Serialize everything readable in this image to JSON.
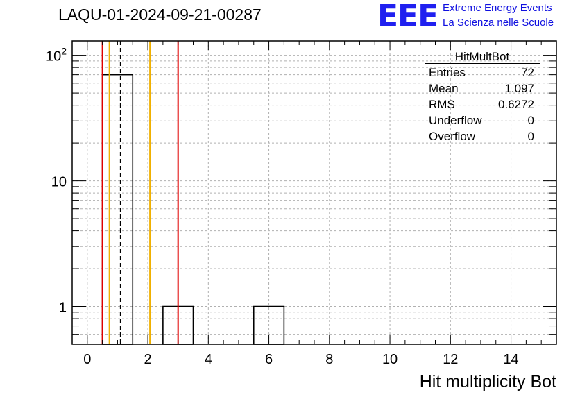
{
  "title": "LAQU-01-2024-09-21-00287",
  "logo": {
    "mark": "EEE",
    "line1": "Extreme Energy Events",
    "line2": "La Scienza nelle Scuole"
  },
  "stats": {
    "name": "HitMultBot",
    "rows": [
      {
        "label": "Entries",
        "value": "72"
      },
      {
        "label": "Mean",
        "value": "1.097"
      },
      {
        "label": "RMS",
        "value": "0.6272"
      },
      {
        "label": "Underflow",
        "value": "0"
      },
      {
        "label": "Overflow",
        "value": "0"
      }
    ]
  },
  "chart_data": {
    "type": "bar",
    "title": "LAQU-01-2024-09-21-00287",
    "xlabel": "Hit multiplicity Bot",
    "ylabel": "",
    "xlim": [
      -0.5,
      15.5
    ],
    "ylim": [
      0.5,
      130
    ],
    "log_y": true,
    "grid": true,
    "bin_edges": [
      0.5,
      1.5,
      2.5,
      3.5,
      4.5,
      5.5,
      6.5
    ],
    "bins": [
      {
        "low": 0.5,
        "high": 1.5,
        "count": 70
      },
      {
        "low": 2.5,
        "high": 3.5,
        "count": 1
      },
      {
        "low": 5.5,
        "high": 6.5,
        "count": 1
      }
    ],
    "x_ticks": [
      0,
      2,
      4,
      6,
      8,
      10,
      12,
      14
    ],
    "y_ticks": [
      {
        "value": 1,
        "label": "1"
      },
      {
        "value": 10,
        "label": "10"
      },
      {
        "value": 100,
        "label": "10^2"
      }
    ],
    "vertical_lines": [
      {
        "x": 0.5,
        "color": "#e00000",
        "style": "solid"
      },
      {
        "x": 0.73,
        "color": "#f0b000",
        "style": "solid"
      },
      {
        "x": 1.097,
        "color": "#000000",
        "style": "dashed"
      },
      {
        "x": 2.07,
        "color": "#f0b000",
        "style": "solid"
      },
      {
        "x": 3.0,
        "color": "#e00000",
        "style": "solid"
      }
    ]
  }
}
